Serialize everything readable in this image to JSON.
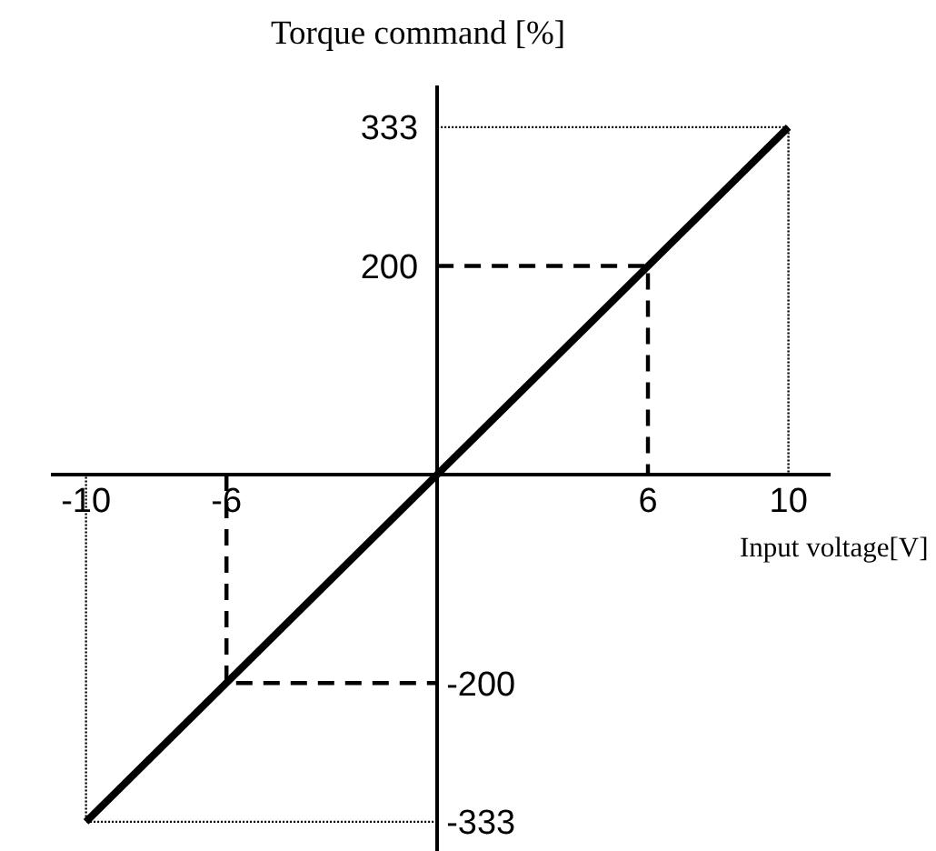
{
  "chart_data": {
    "type": "line",
    "xlabel": "Input voltage[V]",
    "ylabel": "Torque command [%]",
    "xlim": [
      -11,
      11.2
    ],
    "ylim": [
      -361,
      373
    ],
    "xticks": [
      -10,
      -6,
      6,
      10
    ],
    "yticks": [
      200,
      333
    ],
    "y2lim": [
      -361,
      373
    ],
    "y2ticks": [
      -333,
      -200
    ],
    "grid": false,
    "series": [
      {
        "x": [
          0,
          10,
          10
        ],
        "values": [
          333,
          333,
          0
        ],
        "color": "#000000",
        "line_style": "dotted"
      },
      {
        "x": [
          0,
          -10,
          -10
        ],
        "values": [
          -333,
          -333,
          0
        ],
        "color": "#000000",
        "line_style": "dotted"
      },
      {
        "x": [
          0,
          6,
          6
        ],
        "values": [
          200,
          200,
          0
        ],
        "color": "#000000",
        "line_style": "dashed"
      },
      {
        "x": [
          -6,
          -6,
          0
        ],
        "values": [
          0,
          -200,
          -200
        ],
        "color": "#000000",
        "line_style": "dashed"
      },
      {
        "x": [
          -10,
          10
        ],
        "values": [
          -333,
          333
        ],
        "color": "#000000",
        "line_style": "solid"
      }
    ]
  }
}
